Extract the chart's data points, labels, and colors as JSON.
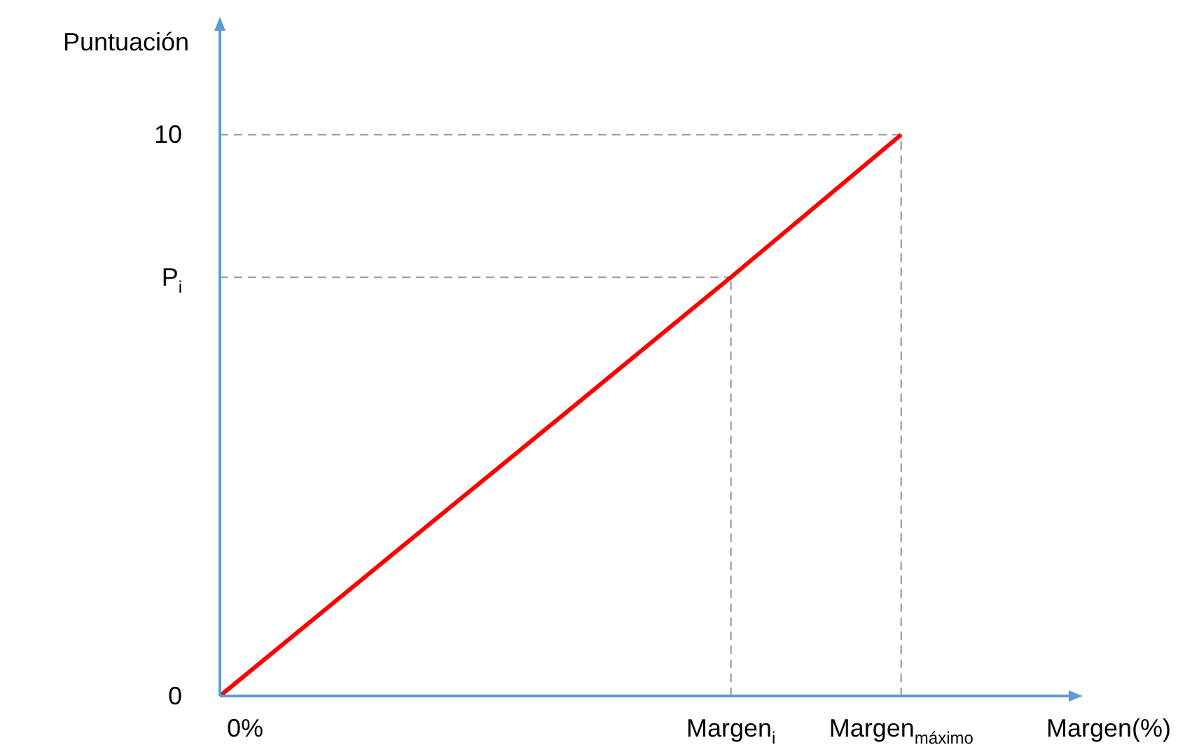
{
  "chart_data": {
    "type": "line",
    "xlabel": "Margen(%)",
    "ylabel": "Puntuación",
    "categories": [
      "0%",
      null,
      null,
      "Margen$_{i}$",
      "Margen$_{máximo}$",
      null
    ],
    "series": [
      {
        "color": "#ff0000",
        "values": [
          0,
          2.49,
          4.97,
          7.46,
          10,
          null
        ]
      }
    ],
    "ylim": [
      0,
      11.9
    ],
    "yticks": [
      0,
      {
        "value": 7.46,
        "label": "P$_{i}$"
      },
      10
    ],
    "ref_lines": [
      {
        "axis": "x",
        "value": "Margen$_{i}$",
        "color": "#a6a6a6",
        "line_style": "dashed"
      },
      {
        "axis": "x",
        "value": "Margen$_{máximo}$",
        "color": "#a6a6a6",
        "line_style": "dashed"
      },
      {
        "axis": "y",
        "value": 7.46,
        "color": "#a6a6a6",
        "line_style": "dashed"
      },
      {
        "axis": "y",
        "value": 10,
        "color": "#a6a6a6",
        "line_style": "dashed"
      }
    ],
    "grid": false,
    "legend": false
  }
}
